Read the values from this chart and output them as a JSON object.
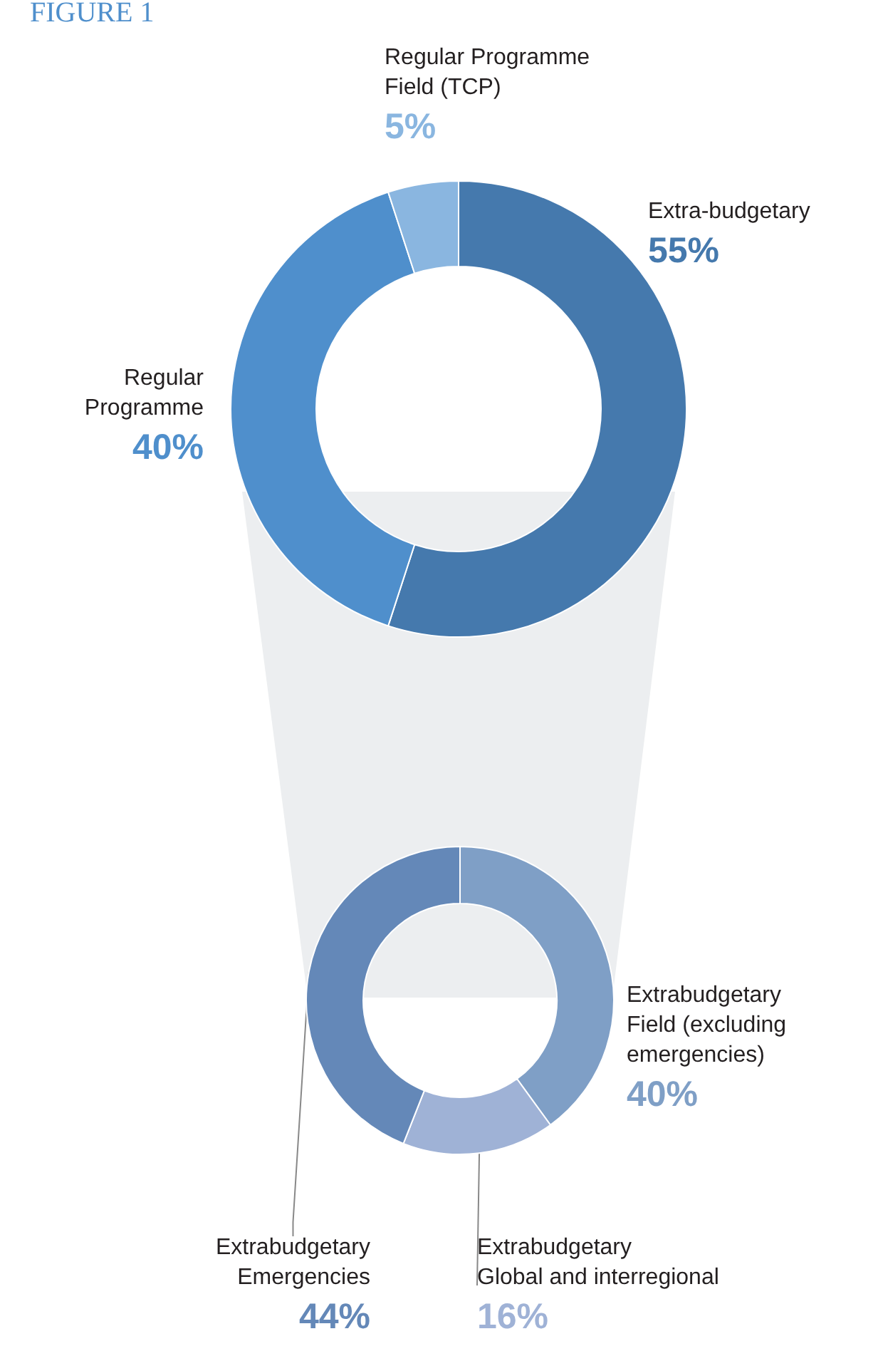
{
  "chart_data": [
    {
      "type": "donut",
      "title": "FIGURE 1",
      "categories": [
        "Extra-budgetary",
        "Regular Programme",
        "Regular Programme Field (TCP)"
      ],
      "values": [
        55,
        40,
        5
      ],
      "value_labels": [
        "55%",
        "40%",
        "5%"
      ],
      "colors": [
        "#4579ad",
        "#4f8fcc",
        "#8ab6e0"
      ]
    },
    {
      "type": "donut",
      "categories": [
        "Extrabudgetary Field (excluding emergencies)",
        "Extrabudgetary Global and interregional",
        "Extrabudgetary Emergencies"
      ],
      "values": [
        40,
        16,
        44
      ],
      "value_labels": [
        "40%",
        "16%",
        "44%"
      ],
      "colors": [
        "#7f9fc6",
        "#9fb2d6",
        "#6488b8"
      ]
    }
  ]
}
